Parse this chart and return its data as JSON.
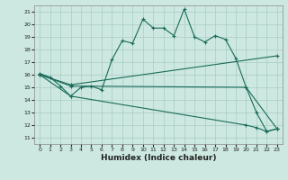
{
  "xlabel": "Humidex (Indice chaleur)",
  "background_color": "#cce8e0",
  "grid_color": "#aaccc4",
  "line_color": "#1a6b5a",
  "xlim": [
    -0.5,
    23.5
  ],
  "ylim": [
    10.5,
    21.5
  ],
  "yticks": [
    11,
    12,
    13,
    14,
    15,
    16,
    17,
    18,
    19,
    20,
    21
  ],
  "xticks": [
    0,
    1,
    2,
    3,
    4,
    5,
    6,
    7,
    8,
    9,
    10,
    11,
    12,
    13,
    14,
    15,
    16,
    17,
    18,
    19,
    20,
    21,
    22,
    23
  ],
  "series": [
    {
      "x": [
        0,
        1,
        2,
        3,
        4,
        5,
        6,
        7,
        8,
        9,
        10,
        11,
        12,
        13,
        14,
        15,
        16,
        17,
        18,
        19,
        20,
        21,
        22,
        23
      ],
      "y": [
        16.1,
        15.8,
        15.1,
        14.3,
        15.0,
        15.1,
        14.8,
        17.2,
        18.7,
        18.5,
        20.4,
        19.7,
        19.7,
        19.1,
        21.2,
        19.0,
        18.6,
        19.1,
        18.8,
        17.3,
        15.0,
        13.0,
        11.5,
        11.7
      ]
    },
    {
      "x": [
        0,
        3,
        23
      ],
      "y": [
        16.0,
        15.2,
        17.5
      ]
    },
    {
      "x": [
        0,
        3,
        20,
        23
      ],
      "y": [
        16.0,
        15.1,
        15.0,
        11.7
      ]
    },
    {
      "x": [
        0,
        3,
        20,
        21,
        22,
        23
      ],
      "y": [
        16.0,
        14.3,
        12.0,
        11.8,
        11.5,
        11.7
      ]
    }
  ]
}
